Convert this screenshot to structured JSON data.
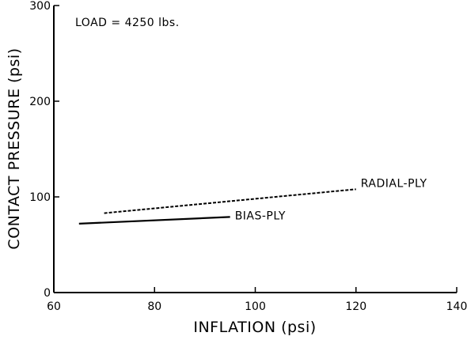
{
  "chart_data": {
    "type": "line",
    "xlabel": "INFLATION (psi)",
    "ylabel": "CONTACT PRESSURE (psi)",
    "xlim": [
      60,
      140
    ],
    "ylim": [
      0,
      300
    ],
    "x_ticks": [
      60,
      80,
      100,
      120,
      140
    ],
    "y_ticks": [
      0,
      100,
      200,
      300
    ],
    "grid": false,
    "annotations": [
      {
        "text": "LOAD = 4250 lbs."
      }
    ],
    "series": [
      {
        "name": "RADIAL-PLY",
        "style": "dashed",
        "x": [
          70,
          120
        ],
        "y": [
          83,
          108
        ]
      },
      {
        "name": "BIAS-PLY",
        "style": "solid",
        "x": [
          65,
          95
        ],
        "y": [
          72,
          79
        ]
      }
    ]
  }
}
